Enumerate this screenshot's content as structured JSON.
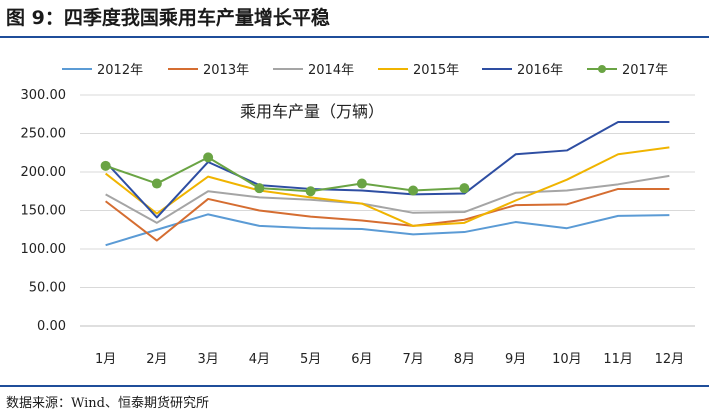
{
  "figure": {
    "title": "图 9：四季度我国乘用车产量增长平稳",
    "source": "数据来源：Wind、恒泰期货研究所"
  },
  "colors": {
    "rule": "#1f4e9a",
    "grid": "#d9d9d9",
    "axis": "#bfbfbf"
  },
  "chart_data": {
    "type": "line",
    "title": "乘用车产量（万辆）",
    "xlabel": "",
    "ylabel": "",
    "categories": [
      "1月",
      "2月",
      "3月",
      "4月",
      "5月",
      "6月",
      "7月",
      "8月",
      "9月",
      "10月",
      "11月",
      "12月"
    ],
    "ylim": [
      0,
      300
    ],
    "yticks": [
      "0.00",
      "50.00",
      "100.00",
      "150.00",
      "200.00",
      "250.00",
      "300.00"
    ],
    "grid": true,
    "legend_position": "top",
    "series": [
      {
        "name": "2012年",
        "color": "#5b9bd5",
        "marker": false,
        "values": [
          105,
          125,
          145,
          130,
          127,
          126,
          119,
          122,
          135,
          127,
          143,
          144
        ]
      },
      {
        "name": "2013年",
        "color": "#d56d31",
        "marker": false,
        "values": [
          162,
          111,
          165,
          150,
          142,
          137,
          130,
          138,
          157,
          158,
          178,
          178
        ]
      },
      {
        "name": "2014年",
        "color": "#a5a5a5",
        "marker": false,
        "values": [
          171,
          134,
          175,
          167,
          164,
          159,
          147,
          148,
          173,
          176,
          184,
          195
        ]
      },
      {
        "name": "2015年",
        "color": "#f0b400",
        "marker": false,
        "values": [
          198,
          146,
          194,
          176,
          167,
          159,
          130,
          134,
          163,
          190,
          223,
          232
        ]
      },
      {
        "name": "2016年",
        "color": "#2e4ea2",
        "marker": false,
        "values": [
          213,
          141,
          213,
          183,
          178,
          176,
          171,
          172,
          223,
          228,
          265,
          265
        ]
      },
      {
        "name": "2017年",
        "color": "#6aa444",
        "marker": true,
        "values": [
          208,
          185,
          219,
          179,
          175,
          185,
          176,
          179,
          null,
          null,
          null,
          null
        ]
      }
    ]
  }
}
